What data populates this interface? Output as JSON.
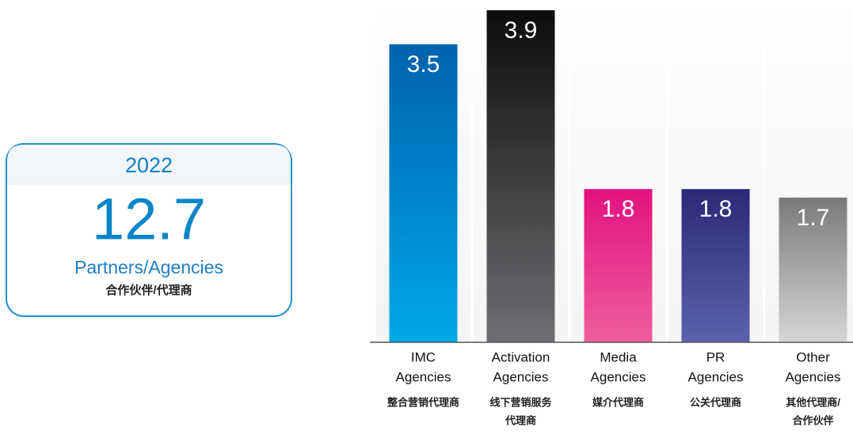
{
  "chart_data": {
    "type": "bar",
    "summary": {
      "year": "2022",
      "total": "12.7",
      "label": "Partners/Agencies",
      "sublabel": "合作伙伴/代理商"
    },
    "categories": [
      [
        "IMC",
        "Agencies"
      ],
      [
        "Activation",
        "Agencies"
      ],
      [
        "Media",
        "Agencies"
      ],
      [
        "PR",
        "Agencies"
      ],
      [
        "Other",
        "Agencies"
      ]
    ],
    "categories_zh": [
      [
        "整合营销代理商"
      ],
      [
        "线下营销服务",
        "代理商"
      ],
      [
        "媒介代理商"
      ],
      [
        "公关代理商"
      ],
      [
        "其他代理商/",
        "合作伙伴"
      ]
    ],
    "values": [
      3.5,
      3.9,
      1.8,
      1.8,
      1.7
    ],
    "colors": [
      [
        "#0062ae",
        "#00a8e8"
      ],
      [
        "#0c0c0c",
        "#6e6f72"
      ],
      [
        "#e2127f",
        "#ef5e9e"
      ],
      [
        "#2a2a78",
        "#5a62ae"
      ],
      [
        "#7a7a7a",
        "#d6d6d6"
      ]
    ],
    "ylim": [
      0,
      3.9
    ]
  }
}
